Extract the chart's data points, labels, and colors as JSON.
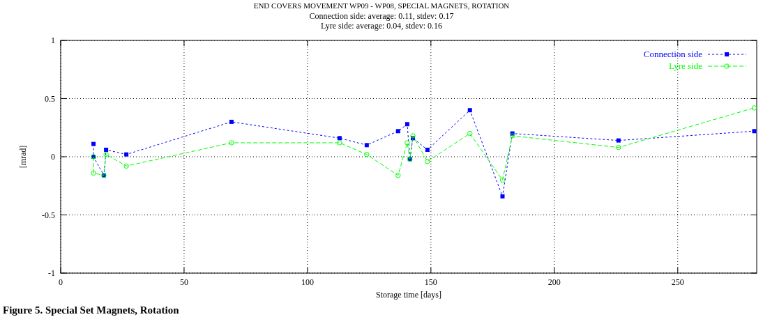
{
  "chart_data": {
    "type": "line",
    "title": "END COVERS MOVEMENT WP09 - WP08,  SPECIAL MAGNETS, ROTATION",
    "subtitle": "Connection side: average: 0.11,  stdev: 0.17\nLyre side: average: 0.04,  stdev: 0.16",
    "xlabel": "Storage time [days]",
    "ylabel": "[mrad]",
    "x": [
      13.3,
      13.3,
      17.5,
      18.4,
      26.6,
      69.2,
      113,
      124,
      136.7,
      140.4,
      141.5,
      142.7,
      148.6,
      165.8,
      179,
      183,
      226,
      281
    ],
    "series": [
      {
        "name": "Connection side",
        "color": "#0000ff",
        "marker": "square",
        "line_style": "dotted",
        "values": [
          0.11,
          0,
          -0.16,
          0.06,
          0.02,
          0.3,
          0.16,
          0.1,
          0.22,
          0.28,
          -0.02,
          0.16,
          0.06,
          0.4,
          -0.34,
          0.2,
          0.14,
          0.22
        ]
      },
      {
        "name": "Lyre side",
        "color": "#00ff00",
        "marker": "circle",
        "line_style": "dashed",
        "values": [
          0,
          -0.14,
          -0.16,
          0.02,
          -0.08,
          0.12,
          0.12,
          0.02,
          -0.16,
          0.12,
          -0.02,
          0.18,
          -0.04,
          0.2,
          -0.2,
          0.18,
          0.08,
          0.42
        ]
      }
    ],
    "xlim": [
      0,
      282
    ],
    "xticks": [
      0,
      50,
      100,
      150,
      200,
      250
    ],
    "ylim": [
      -1,
      1
    ],
    "yticks": [
      -1,
      -0.5,
      0,
      0.5,
      1
    ],
    "grid": true,
    "legend": "top right",
    "annotations": [
      "Figure 5. Special Set Magnets, Rotation"
    ]
  }
}
